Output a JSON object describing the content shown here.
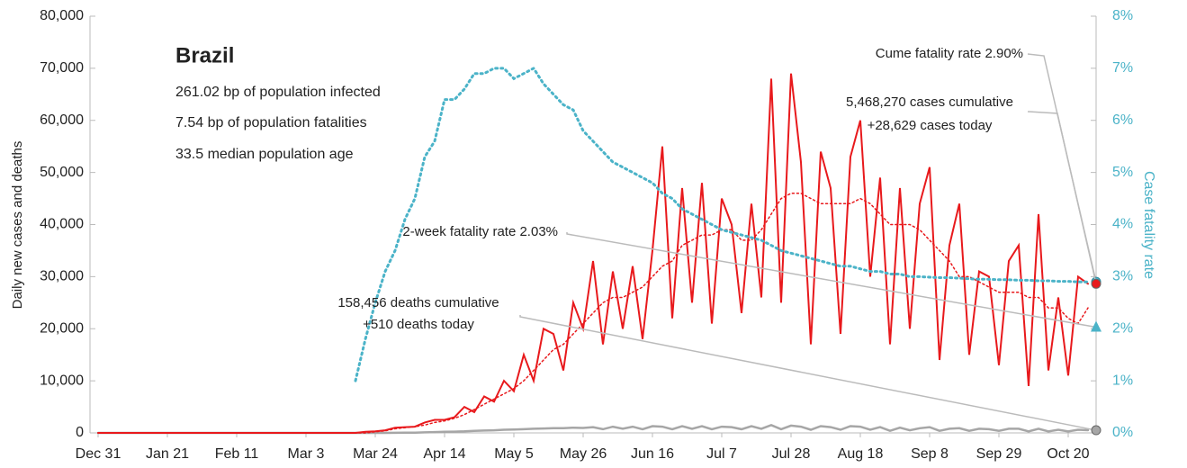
{
  "chart_data": {
    "type": "line",
    "info": {
      "title": "Brazil",
      "lines": [
        "261.02 bp of population infected",
        "7.54 bp of population fatalities",
        "33.5 median population age"
      ]
    },
    "ylabel": "Daily new cases and deaths",
    "y2label": "Case fatality rate",
    "categories": [
      "Dec 31",
      null,
      null,
      null,
      null,
      null,
      null,
      "Jan 21",
      null,
      null,
      null,
      null,
      null,
      null,
      "Feb 11",
      null,
      null,
      null,
      null,
      null,
      null,
      "Mar 3",
      null,
      null,
      null,
      null,
      null,
      null,
      "Mar 24",
      null,
      null,
      null,
      null,
      null,
      null,
      "Apr 14",
      null,
      null,
      null,
      null,
      null,
      null,
      "May 5",
      null,
      null,
      null,
      null,
      null,
      null,
      "May 26",
      null,
      null,
      null,
      null,
      null,
      null,
      "Jun 16",
      null,
      null,
      null,
      null,
      null,
      null,
      "Jul 7",
      null,
      null,
      null,
      null,
      null,
      null,
      "Jul 28",
      null,
      null,
      null,
      null,
      null,
      null,
      "Aug 18",
      null,
      null,
      null,
      null,
      null,
      null,
      "Sep 8",
      null,
      null,
      null,
      null,
      null,
      null,
      "Sep 29",
      null,
      null,
      null,
      null,
      null,
      null,
      "Oct 20",
      null,
      null
    ],
    "ylim": [
      0,
      80000
    ],
    "yticks": [
      0,
      {
        "value": 10000,
        "label": "10,000"
      },
      {
        "value": 20000,
        "label": "20,000"
      },
      {
        "value": 30000,
        "label": "30,000"
      },
      {
        "value": 40000,
        "label": "40,000"
      },
      {
        "value": 50000,
        "label": "50,000"
      },
      {
        "value": 60000,
        "label": "60,000"
      },
      {
        "value": 70000,
        "label": "70,000"
      },
      {
        "value": 80000,
        "label": "80,000"
      }
    ],
    "y2lim": [
      0,
      8
    ],
    "y2ticks": [
      {
        "value": 0,
        "label": "0%"
      },
      {
        "value": 1,
        "label": "1%"
      },
      {
        "value": 2,
        "label": "2%"
      },
      {
        "value": 3,
        "label": "3%"
      },
      {
        "value": 4,
        "label": "4%"
      },
      {
        "value": 5,
        "label": "5%"
      },
      {
        "value": 6,
        "label": "6%"
      },
      {
        "value": 7,
        "label": "7%"
      },
      {
        "value": 8,
        "label": "8%"
      }
    ],
    "series": [
      {
        "color": "#e8191c",
        "style": "solid",
        "values": [
          0,
          0,
          0,
          0,
          0,
          0,
          0,
          0,
          0,
          0,
          0,
          0,
          0,
          0,
          0,
          0,
          0,
          0,
          0,
          0,
          0,
          0,
          0,
          0,
          0,
          0,
          0,
          200,
          300,
          500,
          1000,
          1100,
          1200,
          2000,
          2500,
          2500,
          3000,
          5000,
          4000,
          7000,
          6000,
          10000,
          8000,
          15000,
          10000,
          20000,
          19000,
          12000,
          25000,
          20000,
          33000,
          17000,
          31000,
          20000,
          32000,
          18000,
          35000,
          55000,
          22000,
          47000,
          25000,
          48000,
          21000,
          45000,
          40000,
          23000,
          44000,
          26000,
          68000,
          25000,
          69000,
          52000,
          17000,
          54000,
          47000,
          19000,
          53000,
          60000,
          30000,
          49000,
          17000,
          47000,
          20000,
          44000,
          51000,
          14000,
          36000,
          44000,
          15000,
          31000,
          30000,
          13000,
          33000,
          36000,
          9000,
          42000,
          12000,
          26000,
          11000,
          30000,
          28629
        ]
      },
      {
        "color": "#e8191c",
        "style": "dotted",
        "values": [
          0,
          0,
          0,
          0,
          0,
          0,
          0,
          0,
          0,
          0,
          0,
          0,
          0,
          0,
          0,
          0,
          0,
          0,
          0,
          0,
          0,
          0,
          0,
          0,
          0,
          0,
          0,
          0,
          200,
          400,
          800,
          1000,
          1200,
          1500,
          2000,
          2300,
          2800,
          3500,
          4500,
          5500,
          6500,
          7500,
          8500,
          10000,
          12000,
          14000,
          16000,
          17000,
          19000,
          21000,
          23000,
          25000,
          26000,
          26000,
          27000,
          28000,
          30000,
          32000,
          33000,
          36000,
          37000,
          38000,
          38000,
          39000,
          39000,
          37000,
          37000,
          39000,
          42000,
          45000,
          46000,
          46000,
          45000,
          44000,
          44000,
          44000,
          44000,
          45000,
          44000,
          42000,
          40000,
          40000,
          40000,
          39000,
          37000,
          35000,
          33000,
          30000,
          30000,
          29000,
          28000,
          27000,
          27000,
          27000,
          26000,
          26000,
          24000,
          24000,
          22000,
          21000,
          24000
        ]
      },
      {
        "color": "#a6a6a6",
        "style": "solid",
        "values": [
          0,
          0,
          0,
          0,
          0,
          0,
          0,
          0,
          0,
          0,
          0,
          0,
          0,
          0,
          0,
          0,
          0,
          0,
          0,
          0,
          0,
          0,
          0,
          0,
          0,
          0,
          0,
          0,
          0,
          0,
          20,
          40,
          60,
          100,
          150,
          200,
          250,
          300,
          400,
          450,
          500,
          600,
          650,
          700,
          800,
          850,
          900,
          900,
          1000,
          950,
          1100,
          700,
          1200,
          800,
          1200,
          700,
          1300,
          1200,
          700,
          1300,
          800,
          1300,
          700,
          1200,
          1100,
          700,
          1300,
          800,
          1500,
          700,
          1400,
          1200,
          600,
          1300,
          1100,
          600,
          1300,
          1200,
          600,
          1100,
          400,
          1000,
          500,
          900,
          1100,
          400,
          800,
          900,
          400,
          800,
          700,
          400,
          800,
          800,
          300,
          800,
          300,
          600,
          300,
          600,
          510
        ]
      },
      {
        "color": "#4bb3c8",
        "style": "dotted",
        "axis": "y2",
        "values": [
          null,
          null,
          null,
          null,
          null,
          null,
          null,
          null,
          null,
          null,
          null,
          null,
          null,
          null,
          null,
          null,
          null,
          null,
          null,
          null,
          null,
          null,
          null,
          null,
          null,
          null,
          1.0,
          1.8,
          2.5,
          3.1,
          3.5,
          4.1,
          4.5,
          5.3,
          5.6,
          6.4,
          6.4,
          6.6,
          6.9,
          6.9,
          7.0,
          7.0,
          6.8,
          6.9,
          7.0,
          6.7,
          6.5,
          6.3,
          6.2,
          5.8,
          5.6,
          5.4,
          5.2,
          5.1,
          5.0,
          4.9,
          4.8,
          4.6,
          4.5,
          4.3,
          4.2,
          4.1,
          4.0,
          3.9,
          3.85,
          3.8,
          3.75,
          3.7,
          3.6,
          3.5,
          3.45,
          3.4,
          3.35,
          3.3,
          3.25,
          3.2,
          3.2,
          3.15,
          3.1,
          3.1,
          3.05,
          3.05,
          3.0,
          3.0,
          2.99,
          2.98,
          2.98,
          2.97,
          2.96,
          2.95,
          2.95,
          2.94,
          2.94,
          2.93,
          2.93,
          2.92,
          2.92,
          2.91,
          2.91,
          2.9,
          2.9
        ]
      }
    ],
    "annotations": [
      {
        "lines": [
          "Cume fatality rate 2.90%"
        ],
        "value": 2.9,
        "axis": "y2",
        "marker": "circle",
        "color": "#4bb3c8"
      },
      {
        "lines": [
          "5,468,270 cases cumulative",
          "+28,629 cases today"
        ],
        "value": 28629,
        "axis": "y",
        "marker": "circle",
        "color": "#e8191c"
      },
      {
        "lines": [
          "2-week fatality rate 2.03%"
        ],
        "value": 2.03,
        "axis": "y2",
        "marker": "triangle",
        "color": "#4bb3c8"
      },
      {
        "lines": [
          "158,456 deaths cumulative",
          "+510 deaths today"
        ],
        "value": 510,
        "axis": "y",
        "marker": "circle",
        "color": "#a6a6a6"
      }
    ]
  }
}
